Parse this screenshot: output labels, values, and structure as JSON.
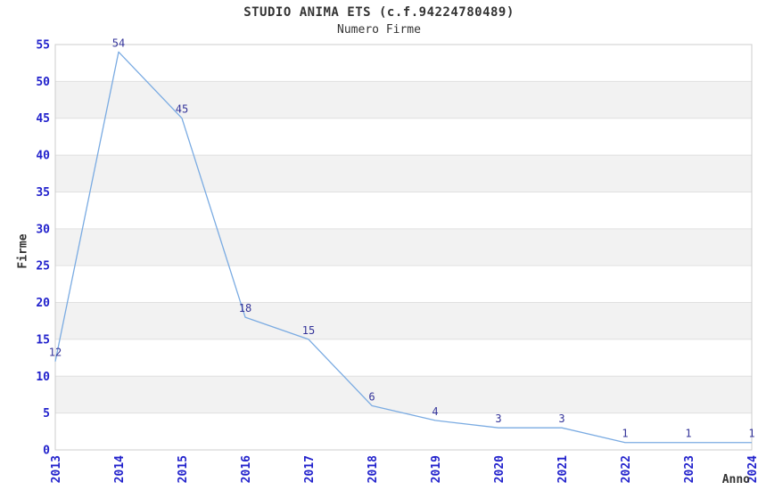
{
  "chart_data": {
    "type": "line",
    "title": "STUDIO ANIMA ETS (c.f.94224780489)",
    "subtitle": "Numero Firme",
    "xlabel": "Anno",
    "ylabel": "Firme",
    "categories": [
      "2013",
      "2014",
      "2015",
      "2016",
      "2017",
      "2018",
      "2019",
      "2020",
      "2021",
      "2022",
      "2023",
      "2024"
    ],
    "values": [
      12,
      54,
      45,
      18,
      15,
      6,
      4,
      3,
      3,
      1,
      1,
      1
    ],
    "ylim": [
      0,
      55
    ],
    "ytick_step": 5,
    "yticks": [
      0,
      5,
      10,
      15,
      20,
      25,
      30,
      35,
      40,
      45,
      50,
      55
    ],
    "grid": "horizontal-alternating-bands",
    "legend_position": "none",
    "markers": "none",
    "colors": {
      "line": "#7aabe2",
      "band_fill": "#f2f2f2",
      "grid_line": "#e0e0e0",
      "plot_border": "#cccccc",
      "tick_label": "#2222cc",
      "data_label": "#333399",
      "title_text": "#333333",
      "background": "#ffffff"
    }
  }
}
